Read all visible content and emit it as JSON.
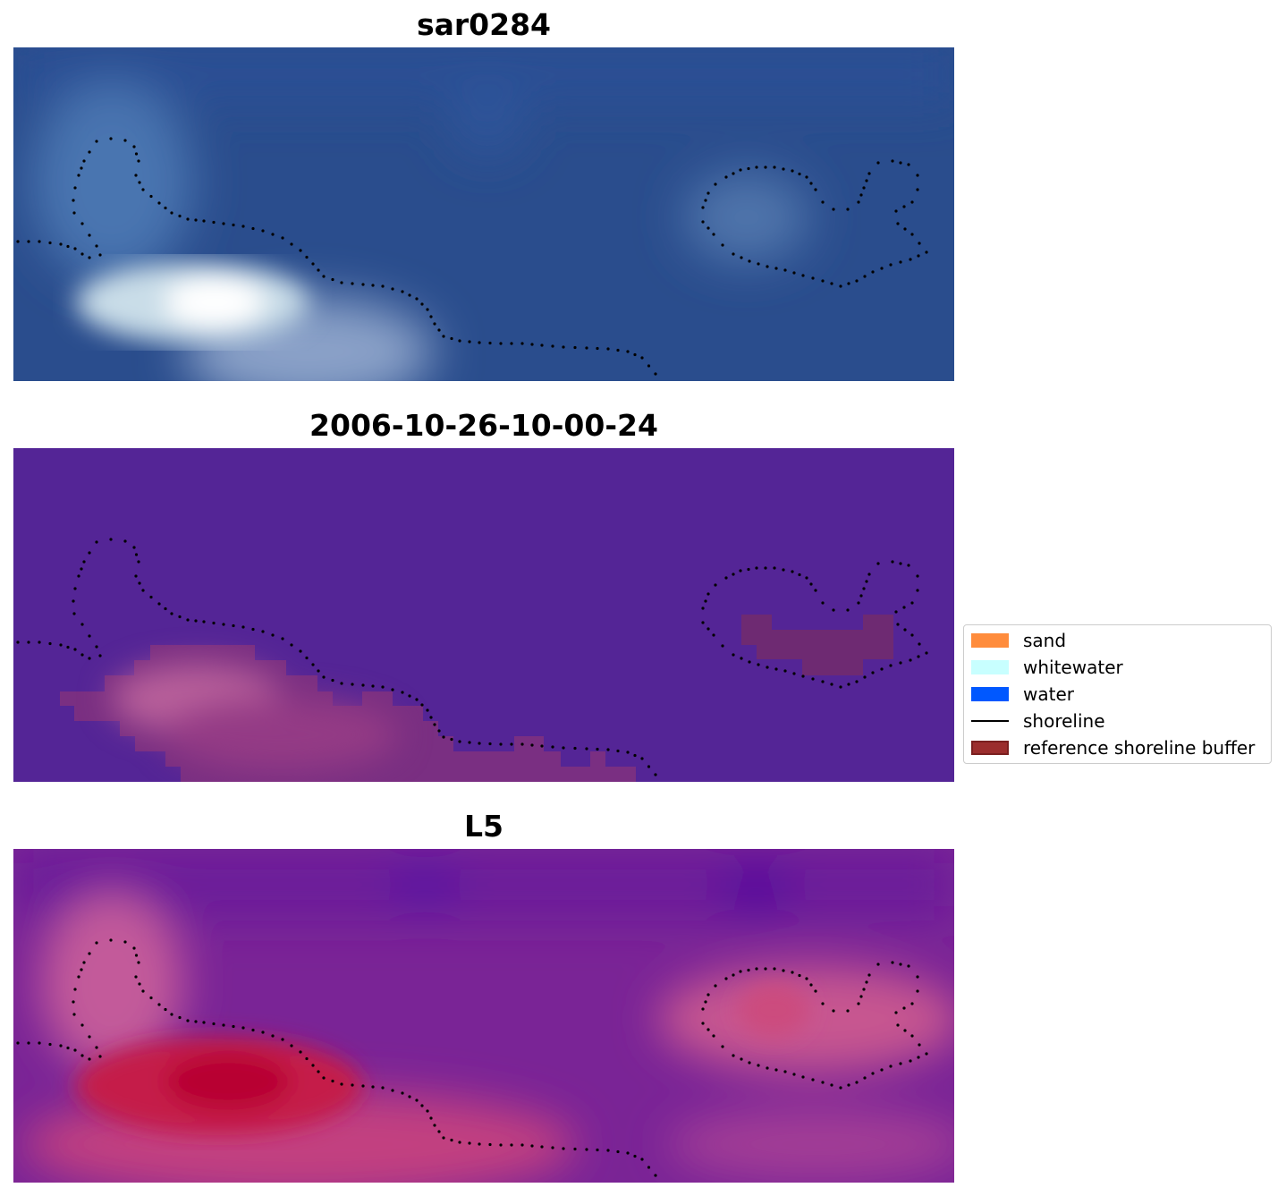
{
  "panels": [
    {
      "title": "sar0284",
      "kind": "rgb"
    },
    {
      "title": "2006-10-26-10-00-24",
      "kind": "classification"
    },
    {
      "title": "L5",
      "kind": "index"
    }
  ],
  "legend": {
    "items": [
      {
        "label": "sand",
        "color": "#ff8c3c",
        "type": "patch"
      },
      {
        "label": "whitewater",
        "color": "#c8ffff",
        "type": "patch"
      },
      {
        "label": "water",
        "color": "#0058ff",
        "type": "patch"
      },
      {
        "label": "shoreline",
        "color": "#000000",
        "type": "line"
      },
      {
        "label": "reference shoreline buffer",
        "color": "#9b2d2d",
        "type": "patch"
      }
    ]
  }
}
